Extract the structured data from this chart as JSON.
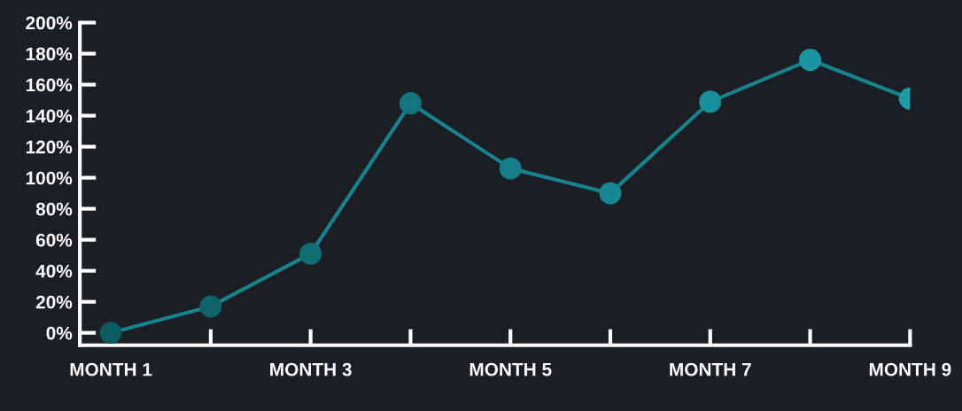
{
  "chart_data": {
    "type": "line",
    "categories": [
      "MONTH 1",
      null,
      "MONTH 3",
      null,
      "MONTH 5",
      null,
      "MONTH 7",
      null,
      "MONTH 9"
    ],
    "series": [
      {
        "color": "#17838e",
        "colors": [
          "#0e5a61",
          "#0f636a",
          "#116c74",
          "#13757e",
          "#157e88",
          "#178792",
          "#18909b",
          "#1996a2",
          "#1a9ba7"
        ],
        "values": [
          0,
          17,
          51,
          148,
          106,
          90,
          149,
          176,
          151
        ]
      }
    ],
    "ylim": [
      -8,
      200
    ],
    "yticks": [
      {
        "value": 0,
        "label": "0%"
      },
      {
        "value": 20,
        "label": "20%"
      },
      {
        "value": 40,
        "label": "40%"
      },
      {
        "value": 60,
        "label": "60%"
      },
      {
        "value": 80,
        "label": "80%"
      },
      {
        "value": 100,
        "label": "100%"
      },
      {
        "value": 120,
        "label": "120%"
      },
      {
        "value": 140,
        "label": "140%"
      },
      {
        "value": 160,
        "label": "160%"
      },
      {
        "value": 180,
        "label": "180%"
      },
      {
        "value": 200,
        "label": "200%"
      }
    ],
    "grid": false,
    "legend": false,
    "marker": "circle",
    "line_style": "solid"
  }
}
